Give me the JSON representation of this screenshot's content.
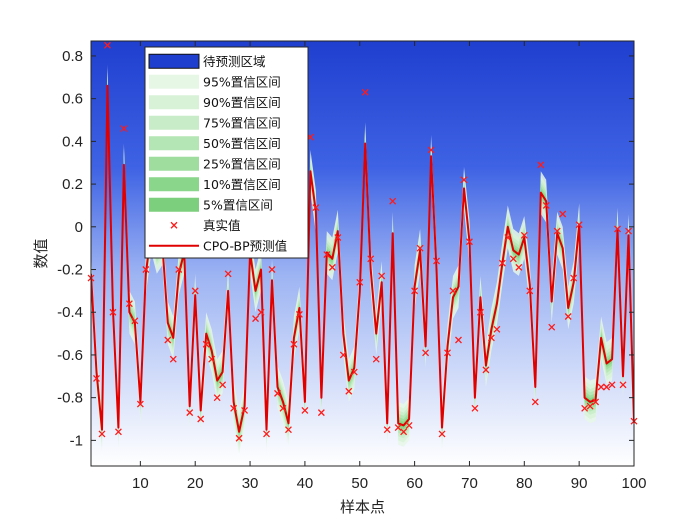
{
  "chart_data": {
    "type": "line",
    "xlabel": "样本点",
    "ylabel": "数值",
    "xlim": [
      1,
      100
    ],
    "ylim": [
      -1.12,
      0.87
    ],
    "xticks": [
      10,
      20,
      30,
      40,
      50,
      60,
      70,
      80,
      90,
      100
    ],
    "yticks": [
      -1,
      -0.8,
      -0.6,
      -0.4,
      -0.2,
      0,
      0.2,
      0.4,
      0.6,
      0.8
    ],
    "ytick_labels": [
      "-1",
      "-0.8",
      "-0.6",
      "-0.4",
      "-0.2",
      "0",
      "0.2",
      "0.4",
      "0.6",
      "0.8"
    ],
    "grid": false,
    "legend_position": "top-left",
    "legend": [
      {
        "label": "待预测区域",
        "kind": "patch",
        "color": "#1f3fcf"
      },
      {
        "label": "95%置信区间",
        "kind": "band",
        "color": "#e6f7e6"
      },
      {
        "label": "90%置信区间",
        "kind": "band",
        "color": "#d8f2d8"
      },
      {
        "label": "75%置信区间",
        "kind": "band",
        "color": "#c8ecc8"
      },
      {
        "label": "50%置信区间",
        "kind": "band",
        "color": "#b4e5b4"
      },
      {
        "label": "25%置信区间",
        "kind": "band",
        "color": "#9edd9e"
      },
      {
        "label": "10%置信区间",
        "kind": "band",
        "color": "#8ad68a"
      },
      {
        "label": "5%置信区间",
        "kind": "band",
        "color": "#7ccf7c"
      },
      {
        "label": "真实值",
        "kind": "marker",
        "color": "#ff1a1a"
      },
      {
        "label": "CPO-BP预测值",
        "kind": "line",
        "color": "#e00000"
      }
    ],
    "background_gradient": {
      "top": "#1f3fcf",
      "bottom": "#ffffff"
    },
    "x": [
      1,
      2,
      3,
      4,
      5,
      6,
      7,
      8,
      9,
      10,
      11,
      12,
      13,
      14,
      15,
      16,
      17,
      18,
      19,
      20,
      21,
      22,
      23,
      24,
      25,
      26,
      27,
      28,
      29,
      30,
      31,
      32,
      33,
      34,
      35,
      36,
      37,
      38,
      39,
      40,
      41,
      42,
      43,
      44,
      45,
      46,
      47,
      48,
      49,
      50,
      51,
      52,
      53,
      54,
      55,
      56,
      57,
      58,
      59,
      60,
      61,
      62,
      63,
      64,
      65,
      66,
      67,
      68,
      69,
      70,
      71,
      72,
      73,
      74,
      75,
      76,
      77,
      78,
      79,
      80,
      81,
      82,
      83,
      84,
      85,
      86,
      87,
      88,
      89,
      90,
      91,
      92,
      93,
      94,
      95,
      96,
      97,
      98,
      99,
      100
    ],
    "series": [
      {
        "name": "真实值",
        "values": [
          -0.24,
          -0.71,
          -0.97,
          0.85,
          -0.4,
          -0.96,
          0.46,
          -0.36,
          -0.44,
          -0.83,
          -0.2,
          0.0,
          -0.1,
          -0.05,
          -0.53,
          -0.62,
          -0.2,
          -0.1,
          -0.87,
          -0.3,
          -0.9,
          -0.55,
          -0.62,
          -0.8,
          -0.74,
          -0.22,
          -0.85,
          -0.99,
          -0.86,
          -0.1,
          -0.43,
          -0.4,
          -0.97,
          -0.2,
          -0.78,
          -0.85,
          -0.95,
          -0.55,
          -0.41,
          -0.86,
          0.42,
          0.09,
          -0.87,
          -0.13,
          -0.19,
          -0.05,
          -0.6,
          -0.77,
          -0.68,
          -0.26,
          0.63,
          -0.15,
          -0.62,
          -0.23,
          -0.95,
          0.12,
          -0.94,
          -0.96,
          -0.93,
          -0.3,
          -0.1,
          -0.59,
          0.36,
          -0.16,
          -0.97,
          -0.59,
          -0.3,
          -0.53,
          0.22,
          -0.07,
          -0.85,
          -0.4,
          -0.67,
          -0.52,
          -0.48,
          -0.17,
          -0.05,
          -0.15,
          -0.19,
          -0.04,
          -0.3,
          -0.82,
          0.29,
          0.1,
          -0.47,
          -0.02,
          0.06,
          -0.42,
          -0.24,
          0.01,
          -0.85,
          -0.84,
          -0.82,
          -0.75,
          -0.75,
          -0.74,
          -0.01,
          -0.74,
          -0.02,
          -0.91
        ]
      },
      {
        "name": "CPO-BP预测值",
        "values": [
          -0.22,
          -0.68,
          -0.95,
          0.66,
          -0.38,
          -0.94,
          0.29,
          -0.4,
          -0.45,
          -0.82,
          -0.22,
          -0.02,
          -0.12,
          -0.08,
          -0.45,
          -0.52,
          -0.22,
          -0.12,
          -0.84,
          -0.32,
          -0.86,
          -0.5,
          -0.58,
          -0.72,
          -0.68,
          -0.3,
          -0.82,
          -0.96,
          -0.84,
          -0.12,
          -0.3,
          -0.2,
          -0.95,
          -0.25,
          -0.75,
          -0.82,
          -0.92,
          -0.52,
          -0.38,
          -0.82,
          0.26,
          0.07,
          -0.8,
          -0.12,
          -0.15,
          -0.02,
          -0.5,
          -0.72,
          -0.66,
          -0.3,
          0.39,
          -0.2,
          -0.5,
          -0.26,
          -0.92,
          -0.03,
          -0.92,
          -0.93,
          -0.9,
          -0.28,
          -0.11,
          -0.56,
          0.33,
          -0.2,
          -0.94,
          -0.56,
          -0.33,
          -0.28,
          0.18,
          -0.07,
          -0.8,
          -0.33,
          -0.65,
          -0.48,
          -0.36,
          -0.17,
          0.0,
          -0.11,
          -0.13,
          -0.05,
          -0.27,
          -0.75,
          0.16,
          0.12,
          -0.35,
          -0.03,
          -0.1,
          -0.38,
          -0.26,
          0.01,
          -0.8,
          -0.82,
          -0.81,
          -0.52,
          -0.64,
          -0.62,
          -0.01,
          -0.7,
          -0.04,
          -0.91
        ]
      }
    ]
  }
}
